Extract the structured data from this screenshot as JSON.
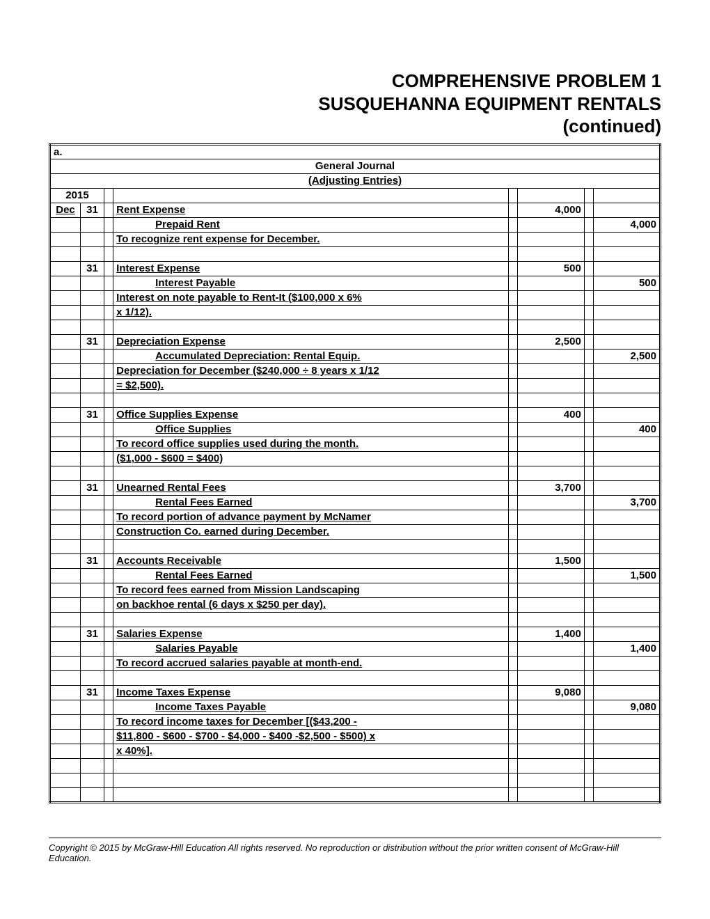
{
  "title": {
    "line1": "COMPREHENSIVE PROBLEM 1",
    "line2": "SUSQUEHANNA EQUIPMENT RENTALS",
    "line3": "(continued)"
  },
  "section_label": "a.",
  "journal_title": "General Journal",
  "journal_subtitle": "(Adjusting Entries)",
  "year": "2015",
  "month": "Dec",
  "entries": [
    {
      "day": "31",
      "account": "Rent Expense",
      "debit": "4,000",
      "creditAccount": "Prepaid Rent",
      "creditAmount": "4,000",
      "explanation": [
        "To recognize rent expense for December."
      ]
    },
    {
      "day": "31",
      "account": "Interest Expense",
      "debit": "500",
      "creditAccount": "Interest Payable",
      "creditAmount": "500",
      "explanation": [
        "Interest on note payable to Rent-It ($100,000 x 6%",
        "x 1/12)."
      ]
    },
    {
      "day": "31",
      "account": "Depreciation Expense",
      "debit": "2,500",
      "creditAccount": "Accumulated Depreciation: Rental Equip.",
      "creditAmount": "2,500",
      "explanation": [
        "Depreciation for December ($240,000 ÷ 8 years x 1/12",
        "= $2,500)."
      ]
    },
    {
      "day": "31",
      "account": "Office Supplies Expense",
      "debit": "400",
      "creditAccount": "Office Supplies",
      "creditAmount": "400",
      "explanation": [
        "To record office supplies used during the month.",
        "($1,000 - $600 = $400)"
      ]
    },
    {
      "day": "31",
      "account": "Unearned Rental Fees",
      "debit": "3,700",
      "creditAccount": "Rental Fees Earned",
      "creditAmount": "3,700",
      "explanation": [
        "To record portion of advance payment by McNamer",
        "Construction Co. earned during December."
      ]
    },
    {
      "day": "31",
      "account": "Accounts Receivable",
      "debit": "1,500",
      "creditAccount": "Rental Fees Earned",
      "creditAmount": "1,500",
      "explanation": [
        "To record fees earned from Mission Landscaping",
        "on backhoe rental (6 days x $250 per day)."
      ]
    },
    {
      "day": "31",
      "account": "Salaries Expense",
      "debit": "1,400",
      "creditAccount": "Salaries Payable",
      "creditAmount": "1,400",
      "explanation": [
        "To record accrued salaries payable at month-end."
      ]
    },
    {
      "day": "31",
      "account": "Income Taxes Expense",
      "debit": "9,080",
      "creditAccount": "Income Taxes Payable",
      "creditAmount": "9,080",
      "explanation": [
        "To record income taxes for December [($43,200 -",
        "$11,800 - $600 - $700 - $4,000 - $400 -$2,500 - $500) x",
        "x 40%]."
      ]
    }
  ],
  "footer": "Copyright © 2015 by McGraw-Hill Education  All rights reserved. No reproduction or distribution without the prior written consent of McGraw-Hill Education."
}
